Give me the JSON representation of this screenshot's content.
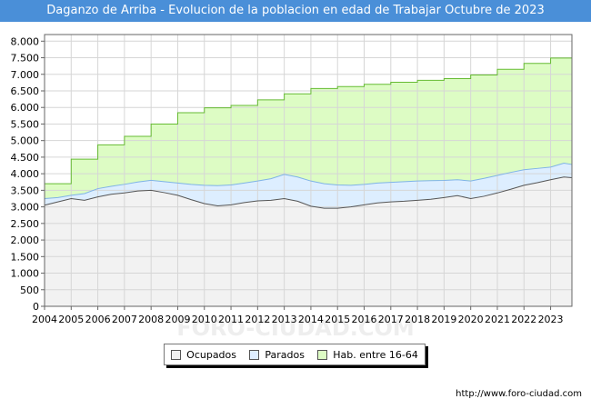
{
  "title": "Daganzo de Arriba - Evolucion de la poblacion en edad de Trabajar Octubre de 2023",
  "source": "http://www.foro-ciudad.com",
  "watermark": "FORO-CIUDAD.COM",
  "colors": {
    "title_bg": "#4a8fd8",
    "ocupados_fill": "#f2f2f2",
    "ocupados_line": "#555555",
    "parados_fill": "#ddeeff",
    "parados_line": "#7fb3e6",
    "hab_fill": "#ddfcc4",
    "hab_line": "#66bb33"
  },
  "chart_data": {
    "type": "area",
    "xlabel": "",
    "ylabel": "",
    "xlim": [
      2004,
      2023.8
    ],
    "ylim": [
      0,
      8200
    ],
    "y_ticks": [
      0,
      500,
      1000,
      1500,
      2000,
      2500,
      3000,
      3500,
      4000,
      4500,
      5000,
      5500,
      6000,
      6500,
      7000,
      7500,
      8000
    ],
    "y_tick_labels": [
      "0",
      "500",
      "1.000",
      "1.500",
      "2.000",
      "2.500",
      "3.000",
      "3.500",
      "4.000",
      "4.500",
      "5.000",
      "5.500",
      "6.000",
      "6.500",
      "7.000",
      "7.500",
      "8.000"
    ],
    "x_ticks": [
      2004,
      2005,
      2006,
      2007,
      2008,
      2009,
      2010,
      2011,
      2012,
      2013,
      2014,
      2015,
      2016,
      2017,
      2018,
      2019,
      2020,
      2021,
      2022,
      2023
    ],
    "x_tick_labels": [
      "2004",
      "2005",
      "2006",
      "2007",
      "2008",
      "2009",
      "2010",
      "2011",
      "2012",
      "2013",
      "2014",
      "2015",
      "2016",
      "2017",
      "2018",
      "2019",
      "2020",
      "2021",
      "2022",
      "2023"
    ],
    "legend": [
      "Ocupados",
      "Parados",
      "Hab. entre 16-64"
    ],
    "series": [
      {
        "name": "Hab. entre 16-64",
        "step": true,
        "x": [
          2004,
          2005,
          2006,
          2007,
          2008,
          2009,
          2010,
          2011,
          2012,
          2013,
          2014,
          2015,
          2016,
          2017,
          2018,
          2019,
          2020,
          2021,
          2022,
          2023
        ],
        "values": [
          3700,
          4440,
          4870,
          5130,
          5500,
          5840,
          5990,
          6060,
          6230,
          6410,
          6570,
          6630,
          6700,
          6760,
          6820,
          6870,
          6980,
          7150,
          7330,
          7490
        ]
      },
      {
        "name": "Parados",
        "step": false,
        "x": [
          2004,
          2004.5,
          2005,
          2005.5,
          2006,
          2006.5,
          2007,
          2007.5,
          2008,
          2008.5,
          2009,
          2009.5,
          2010,
          2010.5,
          2011,
          2011.5,
          2012,
          2012.5,
          2013,
          2013.5,
          2014,
          2014.5,
          2015,
          2015.5,
          2016,
          2016.5,
          2017,
          2017.5,
          2018,
          2018.5,
          2019,
          2019.5,
          2020,
          2020.5,
          2021,
          2021.5,
          2022,
          2022.5,
          2023,
          2023.5,
          2023.8
        ],
        "values": [
          3250,
          3280,
          3350,
          3400,
          3550,
          3620,
          3680,
          3750,
          3800,
          3760,
          3720,
          3680,
          3650,
          3640,
          3660,
          3720,
          3780,
          3850,
          3980,
          3900,
          3780,
          3700,
          3660,
          3650,
          3680,
          3720,
          3740,
          3760,
          3780,
          3790,
          3800,
          3820,
          3780,
          3860,
          3950,
          4040,
          4120,
          4160,
          4200,
          4320,
          4280
        ]
      },
      {
        "name": "Ocupados",
        "step": false,
        "x": [
          2004,
          2004.5,
          2005,
          2005.5,
          2006,
          2006.5,
          2007,
          2007.5,
          2008,
          2008.5,
          2009,
          2009.5,
          2010,
          2010.5,
          2011,
          2011.5,
          2012,
          2012.5,
          2013,
          2013.5,
          2014,
          2014.5,
          2015,
          2015.5,
          2016,
          2016.5,
          2017,
          2017.5,
          2018,
          2018.5,
          2019,
          2019.5,
          2020,
          2020.5,
          2021,
          2021.5,
          2022,
          2022.5,
          2023,
          2023.5,
          2023.8
        ],
        "values": [
          3050,
          3150,
          3250,
          3200,
          3300,
          3380,
          3420,
          3480,
          3500,
          3430,
          3350,
          3220,
          3100,
          3030,
          3060,
          3130,
          3180,
          3200,
          3250,
          3170,
          3020,
          2960,
          2960,
          3000,
          3060,
          3120,
          3150,
          3170,
          3200,
          3230,
          3280,
          3340,
          3250,
          3320,
          3420,
          3530,
          3650,
          3730,
          3820,
          3900,
          3880
        ]
      }
    ]
  }
}
